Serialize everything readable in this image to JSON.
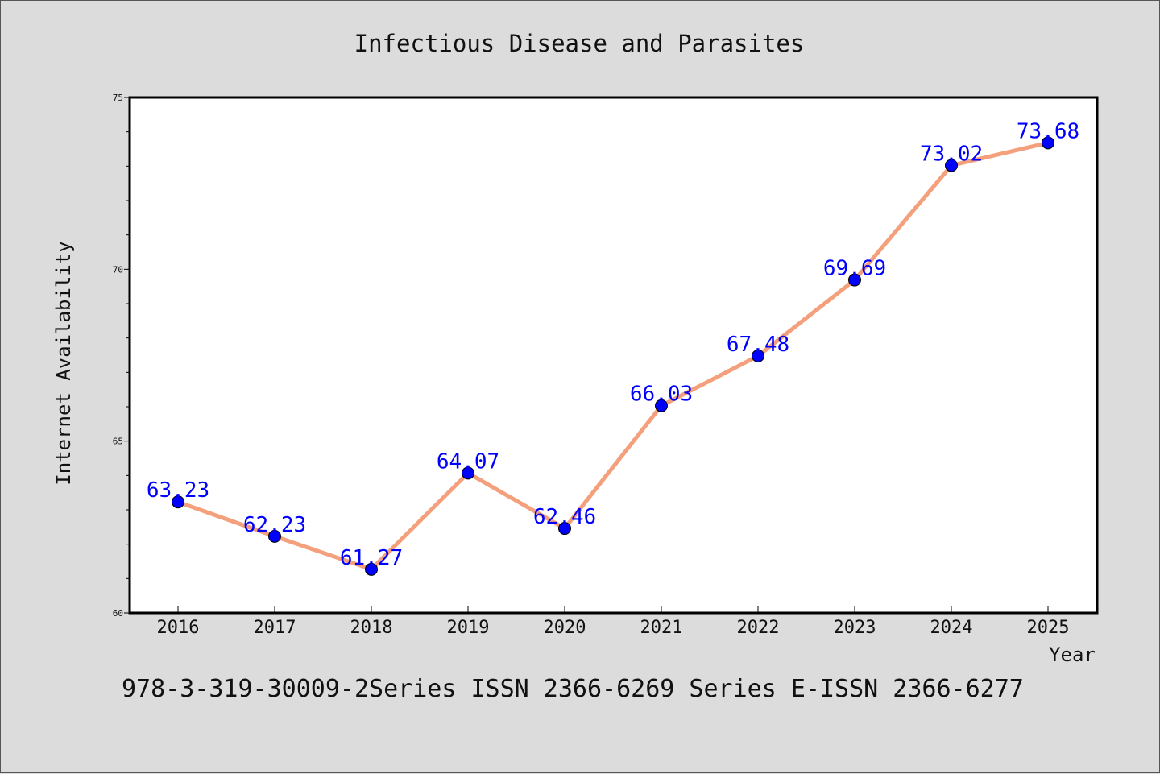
{
  "chart_data": {
    "type": "line",
    "title": "Infectious Disease and Parasites",
    "xlabel": "Year",
    "ylabel": "Internet Availability",
    "categories": [
      "2016",
      "2017",
      "2018",
      "2019",
      "2020",
      "2021",
      "2022",
      "2023",
      "2024",
      "2025"
    ],
    "values": [
      63.23,
      62.23,
      61.27,
      64.07,
      62.46,
      66.03,
      67.48,
      69.69,
      73.02,
      73.68
    ],
    "data_labels": [
      "63.23",
      "62.23",
      "61.27",
      "64.07",
      "62.46",
      "66.03",
      "67.48",
      "69.69",
      "73.02",
      "73.68"
    ],
    "ylim": [
      60,
      75
    ],
    "yticks": [
      "60",
      "65",
      "70",
      "75"
    ],
    "grid": false,
    "legend": "none",
    "colors": {
      "line": "#f4a07c",
      "marker": "#0000ff",
      "label": "#0000ff",
      "background": "#dcdcdc",
      "plot_background": "#ffffff"
    }
  },
  "footer": "978-3-319-30009-2Series ISSN 2366-6269 Series E-ISSN 2366-6277"
}
